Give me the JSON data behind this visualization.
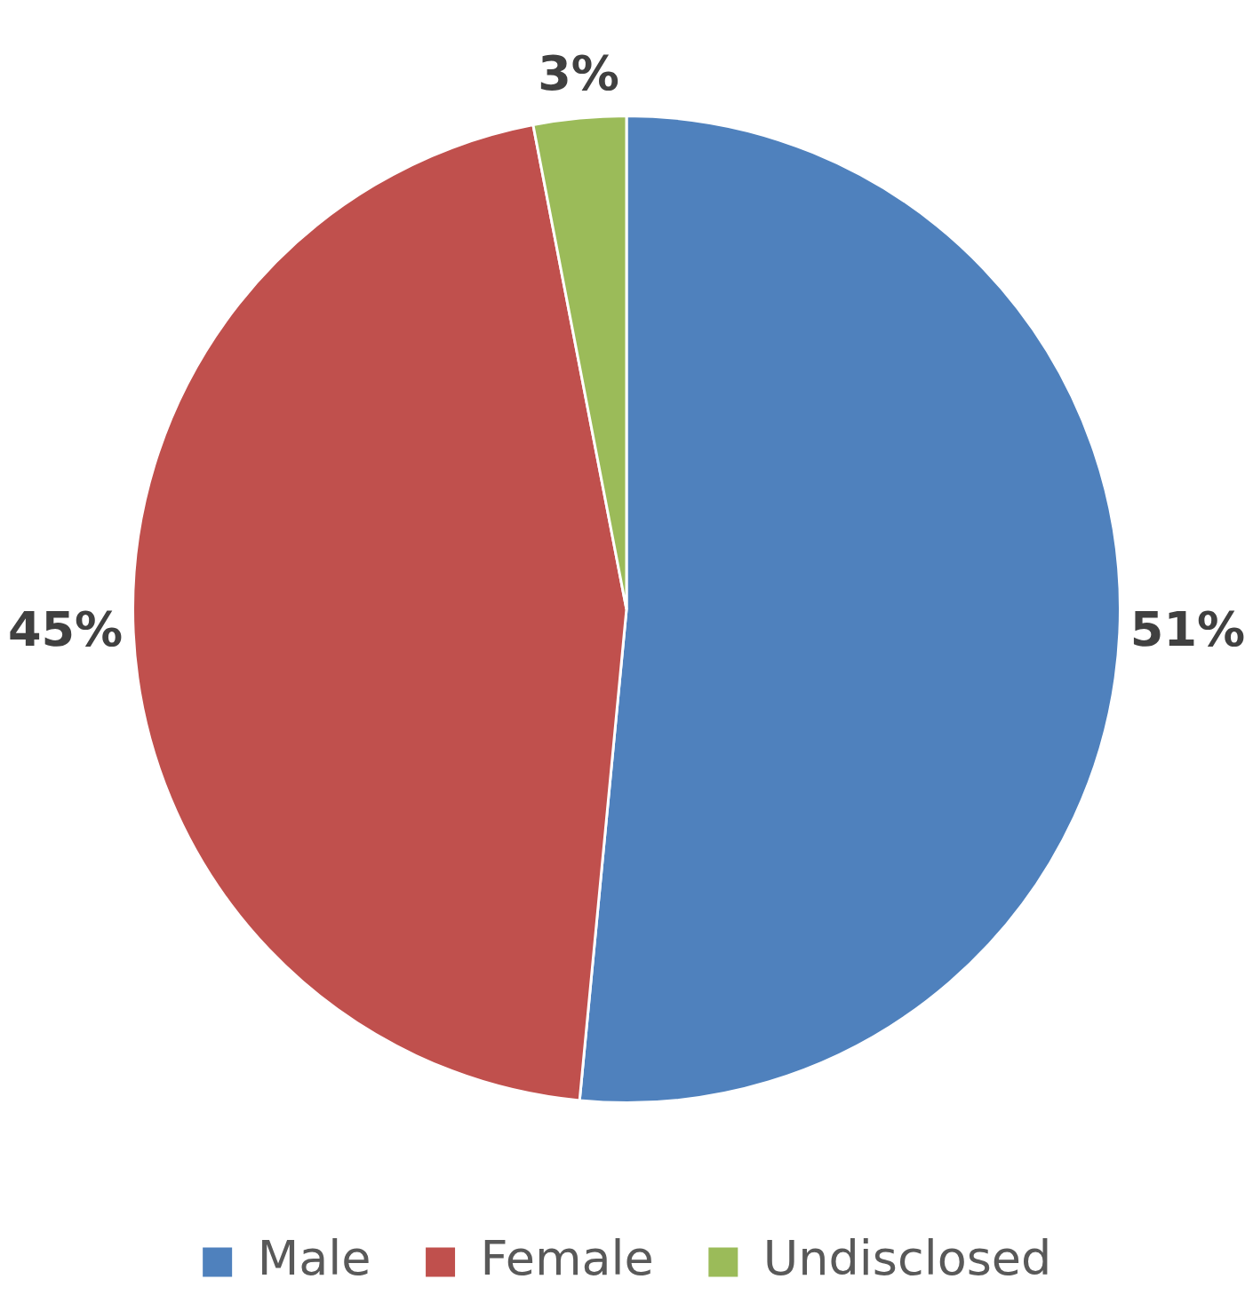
{
  "chart_data": {
    "type": "pie",
    "categories": [
      "Male",
      "Female",
      "Undisclosed"
    ],
    "values": [
      51,
      45,
      3
    ],
    "value_labels": [
      "51%",
      "45%",
      "3%"
    ],
    "colors": [
      "#4f81bd",
      "#c0504d",
      "#9bbb59"
    ],
    "legend": "bottom"
  }
}
